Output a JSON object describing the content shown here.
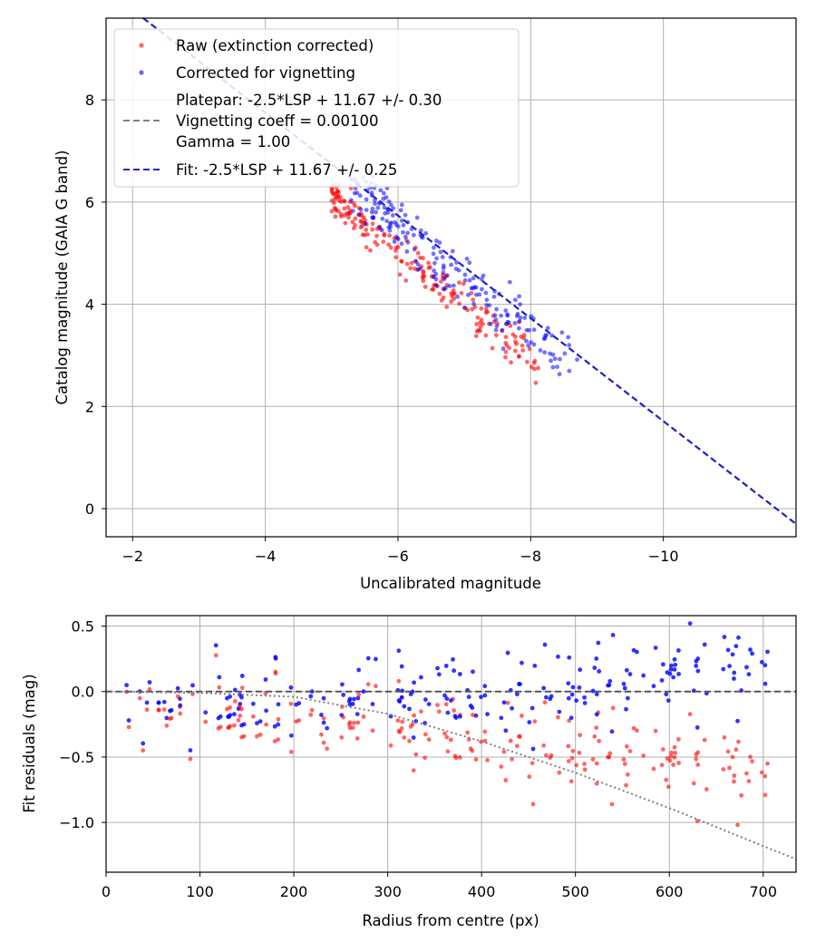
{
  "chart_data": [
    {
      "type": "scatter",
      "xlabel": "Uncalibrated magnitude",
      "ylabel": "Catalog magnitude (GAIA G band)",
      "xlim": [
        -1.6,
        -12.0
      ],
      "ylim": [
        9.6,
        -0.55
      ],
      "xticks": [
        -2,
        -4,
        -6,
        -8,
        -10
      ],
      "xtick_labels": [
        "−2",
        "−4",
        "−6",
        "−8",
        "−10"
      ],
      "yticks": [
        0,
        2,
        4,
        6,
        8
      ],
      "ytick_labels": [
        "0",
        "2",
        "4",
        "6",
        "8"
      ],
      "grid": true,
      "legend_position": "upper-left",
      "series": [
        {
          "name": "Raw (extinction corrected)",
          "color": "#ff0000",
          "marker": "dot",
          "points_generated": {
            "count": 200,
            "x_range": [
              -4.8,
              -8.2
            ],
            "y_at_x": "approx (x+11.67)/... ~ 6.2 at -5.0 and 2.7 at -8.2",
            "scatter": 0.18
          }
        },
        {
          "name": "Corrected for vignetting",
          "color": "#0000ff",
          "marker": "dot",
          "points_generated": {
            "count": 200,
            "x_range": [
              -5.0,
              -8.7
            ],
            "scatter": 0.18
          }
        },
        {
          "name": "Platepar: -2.5*LSP + 11.67 +/- 0.30\nVignetting coeff = 0.00100\nGamma = 1.00",
          "color": "#808080",
          "style": "dashed",
          "label_lines": [
            "Platepar: -2.5*LSP + 11.67 +/- 0.30",
            "Vignetting coeff = 0.00100",
            "Gamma = 1.00"
          ]
        },
        {
          "name": "Fit: -2.5*LSP + 11.67 +/- 0.25",
          "color": "#2222cc",
          "style": "dashed",
          "line_points": [
            [
              -2.16,
              9.6
            ],
            [
              -12.0,
              -0.3
            ]
          ]
        }
      ],
      "legend": [
        {
          "label": "Raw (extinction corrected)",
          "color": "#ff0000",
          "kind": "dot"
        },
        {
          "label": "Corrected for vignetting",
          "color": "#0000ff",
          "kind": "dot"
        },
        {
          "label": "Platepar: -2.5*LSP + 11.67 +/- 0.30",
          "label2": "Vignetting coeff = 0.00100",
          "label3": "Gamma = 1.00",
          "color": "#808080",
          "kind": "dash"
        },
        {
          "label": "Fit: -2.5*LSP + 11.67 +/- 0.25",
          "color": "#2222cc",
          "kind": "dash"
        }
      ]
    },
    {
      "type": "scatter",
      "xlabel": "Radius from centre (px)",
      "ylabel": "Fit residuals (mag)",
      "xlim": [
        0,
        735
      ],
      "ylim": [
        -1.38,
        0.58
      ],
      "xticks": [
        0,
        100,
        200,
        300,
        400,
        500,
        600,
        700
      ],
      "xtick_labels": [
        "0",
        "100",
        "200",
        "300",
        "400",
        "500",
        "600",
        "700"
      ],
      "yticks": [
        0.5,
        0.0,
        -0.5,
        -1.0
      ],
      "ytick_labels": [
        "0.5",
        "0.0",
        "−0.5",
        "−1.0"
      ],
      "grid": true,
      "reference_line": {
        "y": 0.0,
        "color": "#555555",
        "style": "dashed"
      },
      "vignetting_curve": {
        "color": "#808080",
        "style": "dotted",
        "formula": "residual = -2.5*log10(cos^4(atan(0.001*r))) approx",
        "points": [
          [
            0,
            0.0
          ],
          [
            100,
            -0.01
          ],
          [
            200,
            -0.04
          ],
          [
            300,
            -0.17
          ],
          [
            400,
            -0.38
          ],
          [
            500,
            -0.62
          ],
          [
            600,
            -0.89
          ],
          [
            700,
            -1.18
          ],
          [
            735,
            -1.28
          ]
        ]
      },
      "series": [
        {
          "name": "Raw (extinction corrected)",
          "color": "#ff0000"
        },
        {
          "name": "Corrected for vignetting",
          "color": "#0000ff"
        }
      ]
    }
  ]
}
